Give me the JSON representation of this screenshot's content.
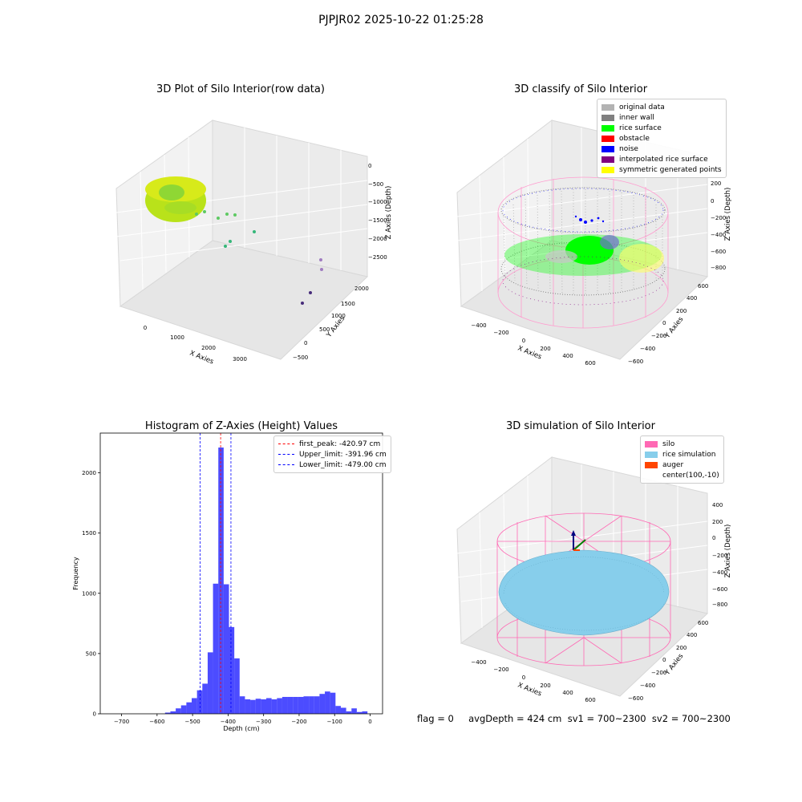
{
  "figure_title": "PJPJR02 2025-10-22 01:25:28",
  "status_line": "flag = 0     avgDepth = 424 cm  sv1 = 700~2300  sv2 = 700~2300",
  "panels": {
    "raw": {
      "title": "3D Plot of Silo Interior(row data)",
      "xlabel": "X Axies",
      "ylabel": "Y Axies",
      "zlabel": "Z Axies (Depth)",
      "xticks": [
        "0",
        "1000",
        "2000",
        "3000"
      ],
      "yticks": [
        "−500",
        "0",
        "500",
        "1000",
        "1500",
        "2000"
      ],
      "zticks": [
        "0",
        "−500",
        "−1000",
        "−1500",
        "−2000",
        "−2500"
      ]
    },
    "classify": {
      "title": "3D classify of Silo Interior",
      "xlabel": "X Axies",
      "ylabel": "Y Axies",
      "zlabel": "Z Axies (Depth)",
      "xticks": [
        "−400",
        "−200",
        "0",
        "200",
        "400",
        "600"
      ],
      "yticks": [
        "−600",
        "−400",
        "−200",
        "0",
        "200",
        "400",
        "600"
      ],
      "zticks": [
        "200",
        "0",
        "−200",
        "−400",
        "−600",
        "−800"
      ],
      "legend": [
        {
          "label": "original data",
          "color": "#b3b3b3"
        },
        {
          "label": "inner wall",
          "color": "#808080"
        },
        {
          "label": "rice surface",
          "color": "#00ff00"
        },
        {
          "label": "obstacle",
          "color": "#ff0000"
        },
        {
          "label": "noise",
          "color": "#0000ff"
        },
        {
          "label": "interpolated rice surface",
          "color": "#800080"
        },
        {
          "label": "symmetric generated points",
          "color": "#ffff00"
        }
      ]
    },
    "simulation": {
      "title": "3D simulation of Silo Interior",
      "xlabel": "X Axies",
      "ylabel": "Y Axies",
      "zlabel": "Z Axies (Depth)",
      "xticks": [
        "−400",
        "−200",
        "0",
        "200",
        "400",
        "600"
      ],
      "yticks": [
        "−600",
        "−400",
        "−200",
        "0",
        "200",
        "400",
        "600"
      ],
      "zticks": [
        "400",
        "200",
        "0",
        "−200",
        "−400",
        "−600",
        "−800"
      ],
      "legend": [
        {
          "label": "silo",
          "color": "#ff69b4"
        },
        {
          "label": "rice simulation",
          "color": "#87ceeb"
        },
        {
          "label": "auger",
          "color": "#ff4500"
        },
        {
          "label": "center(100,-10)",
          "color": ""
        }
      ]
    }
  },
  "chart_data": {
    "type": "bar",
    "title": "Histogram of Z-Axies (Height) Values",
    "xlabel": "Depth (cm)",
    "ylabel": "Frequency",
    "xlim": [
      -760,
      35
    ],
    "ylim": [
      0,
      2330
    ],
    "xticks": [
      -700,
      -600,
      -500,
      -400,
      -300,
      -200,
      -100,
      0
    ],
    "yticks": [
      0,
      500,
      1000,
      1500,
      2000
    ],
    "bar_color": "#0000ff",
    "bin_width": 15,
    "bins": [
      {
        "x": -570,
        "count": 10
      },
      {
        "x": -555,
        "count": 20
      },
      {
        "x": -540,
        "count": 45
      },
      {
        "x": -525,
        "count": 70
      },
      {
        "x": -510,
        "count": 95
      },
      {
        "x": -495,
        "count": 130
      },
      {
        "x": -480,
        "count": 195
      },
      {
        "x": -465,
        "count": 250
      },
      {
        "x": -450,
        "count": 510
      },
      {
        "x": -435,
        "count": 1080
      },
      {
        "x": -420,
        "count": 2210
      },
      {
        "x": -405,
        "count": 1075
      },
      {
        "x": -390,
        "count": 720
      },
      {
        "x": -375,
        "count": 460
      },
      {
        "x": -360,
        "count": 145
      },
      {
        "x": -345,
        "count": 120
      },
      {
        "x": -330,
        "count": 115
      },
      {
        "x": -315,
        "count": 125
      },
      {
        "x": -300,
        "count": 120
      },
      {
        "x": -285,
        "count": 130
      },
      {
        "x": -270,
        "count": 120
      },
      {
        "x": -255,
        "count": 130
      },
      {
        "x": -240,
        "count": 140
      },
      {
        "x": -225,
        "count": 140
      },
      {
        "x": -210,
        "count": 140
      },
      {
        "x": -195,
        "count": 140
      },
      {
        "x": -180,
        "count": 145
      },
      {
        "x": -165,
        "count": 145
      },
      {
        "x": -150,
        "count": 145
      },
      {
        "x": -135,
        "count": 165
      },
      {
        "x": -120,
        "count": 185
      },
      {
        "x": -105,
        "count": 175
      },
      {
        "x": -90,
        "count": 65
      },
      {
        "x": -75,
        "count": 50
      },
      {
        "x": -60,
        "count": 20
      },
      {
        "x": -45,
        "count": 45
      },
      {
        "x": -30,
        "count": 15
      },
      {
        "x": -15,
        "count": 20
      }
    ],
    "vlines": [
      {
        "label": "first_peak: -420.97 cm",
        "x": -420.97,
        "color": "#ff0000"
      },
      {
        "label": "Upper_limit: -391.96 cm",
        "x": -391.96,
        "color": "#0000ff"
      },
      {
        "label": "Lower_limit: -479.00 cm",
        "x": -479.0,
        "color": "#0000ff"
      }
    ],
    "legend_position": "upper right"
  }
}
